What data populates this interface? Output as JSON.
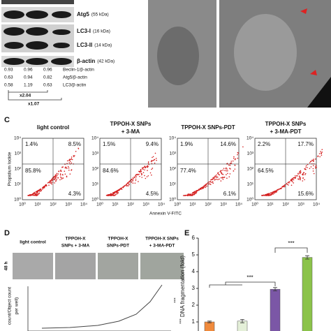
{
  "blot": {
    "bands": [
      {
        "name": "Atg5",
        "size": "(55 kDa)"
      },
      {
        "name": "LC3-I",
        "size": "(16 kDa)"
      },
      {
        "name": "LC3-II",
        "size": "(14 kDa)"
      },
      {
        "name": "β-actin",
        "size": "(42 kDa)"
      }
    ],
    "ratios": [
      {
        "label": "Beclin-1/β-actin",
        "values": [
          "0.93",
          "0.96",
          "0.96"
        ]
      },
      {
        "label": "Atg5/β-actin",
        "values": [
          "0.63",
          "0.94",
          "0.82"
        ]
      },
      {
        "label": "LC3/β-actin",
        "values": [
          "0.58",
          "1.19",
          "0.63"
        ]
      }
    ],
    "folds": [
      "x2.04",
      "x1.07"
    ]
  },
  "panel_c": {
    "label": "C",
    "x_label": "Annexin V-FITC",
    "y_label": "Propidium Iodide",
    "ticks": [
      "10⁰",
      "10¹",
      "10²",
      "10³",
      "10⁴"
    ],
    "plots": [
      {
        "title": [
          "light control"
        ],
        "quadrants": [
          "1.4%",
          "8.5%",
          "85.8%",
          "4.3%"
        ]
      },
      {
        "title": [
          "TPPOH-X SNPs",
          "+ 3-MA"
        ],
        "quadrants": [
          "1.5%",
          "9.4%",
          "84.6%",
          "4.5%"
        ]
      },
      {
        "title": [
          "TPPOH-X SNPs-PDT"
        ],
        "quadrants": [
          "1.9%",
          "14.6%",
          "77.4%",
          "6.1%"
        ]
      },
      {
        "title": [
          "TPPOH-X SNPs",
          "+ 3-MA-PDT"
        ],
        "quadrants": [
          "2.2%",
          "17.7%",
          "64.5%",
          "15.6%"
        ]
      }
    ]
  },
  "panel_d": {
    "label": "D",
    "row_label": "48 h",
    "y_label": [
      "count/Object count",
      "per well)"
    ],
    "significance": [
      "***",
      "***"
    ],
    "columns": [
      [
        "light control"
      ],
      [
        "TPPOH-X",
        "SNPs + 3-MA"
      ],
      [
        "TPPOH-X",
        "SNPs-PDT"
      ],
      [
        "TPPOH-X SNPs",
        "+ 3-MA-PDT"
      ]
    ]
  },
  "panel_e": {
    "type": "bar",
    "label": "E",
    "y_label": "DNA fragmentation (fold)",
    "values": [
      1,
      1.05,
      2.95,
      4.85
    ],
    "errors": [
      0.05,
      0.1,
      0.1,
      0.1
    ],
    "colors": [
      "#f08a3c",
      "#e4efd8",
      "#7b57a6",
      "#8bc34a"
    ],
    "ylim": [
      0,
      6
    ],
    "yticks": [
      1,
      2,
      3,
      4,
      5,
      6
    ],
    "significance": [
      "***",
      "***"
    ]
  }
}
